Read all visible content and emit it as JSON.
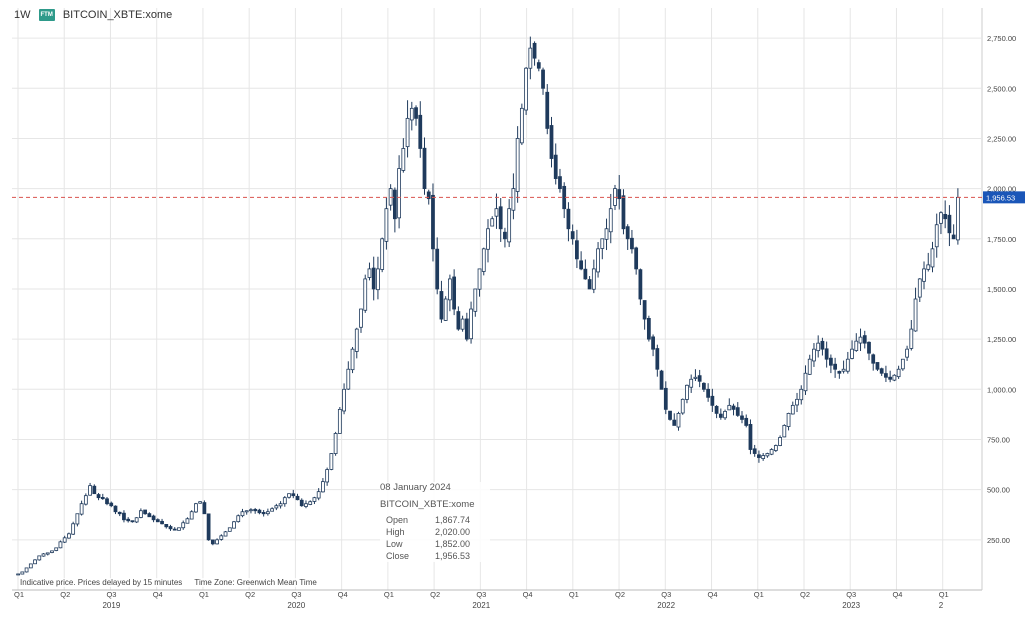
{
  "header": {
    "interval": "1W",
    "badge": "FTM",
    "symbol": "BITCOIN_XBTE:xome"
  },
  "colors": {
    "up": "#ffffff",
    "down": "#1f3a5c",
    "wick": "#1f3a5c",
    "last_price_line": "#d9534f",
    "last_price_label_bg": "#1a56b8",
    "grid": "#e6e6e6"
  },
  "tooltip": {
    "date": "08 January 2024",
    "symbol": "BITCOIN_XBTE:xome",
    "open_label": "Open",
    "open_value": "1,867.74",
    "high_label": "High",
    "high_value": "2,020.00",
    "low_label": "Low",
    "low_value": "1,852.00",
    "close_label": "Close",
    "close_value": "1,956.53"
  },
  "footer_note": {
    "delay": "Indicative price. Prices delayed by 15 minutes",
    "timezone": "Time Zone: Greenwich Mean Time"
  },
  "chart_data": {
    "type": "candlestick",
    "interval": "1W",
    "ylim": [
      0,
      2900
    ],
    "yticks": [
      "250.00",
      "500.00",
      "750.00",
      "1,000.00",
      "1,250.00",
      "1,500.00",
      "1,750.00",
      "2,000.00",
      "2,250.00",
      "2,500.00",
      "2,750.00"
    ],
    "last_price": "1,956.53",
    "quarter_ticks": [
      "Q1",
      "Q2",
      "Q3",
      "Q4",
      "Q1",
      "Q2",
      "Q3",
      "Q4",
      "Q1",
      "Q2",
      "Q3",
      "Q4",
      "Q1",
      "Q2",
      "Q3",
      "Q4",
      "Q1",
      "Q2",
      "Q3",
      "Q4",
      "Q1"
    ],
    "year_labels": [
      "2019",
      "2020",
      "2021",
      "2022",
      "2023",
      "2"
    ],
    "close": [
      80,
      90,
      110,
      130,
      150,
      170,
      180,
      185,
      195,
      210,
      240,
      260,
      280,
      330,
      380,
      430,
      470,
      520,
      480,
      460,
      455,
      430,
      420,
      390,
      380,
      350,
      345,
      340,
      360,
      395,
      380,
      365,
      350,
      340,
      330,
      315,
      305,
      300,
      310,
      335,
      355,
      390,
      430,
      440,
      380,
      250,
      230,
      250,
      270,
      290,
      310,
      340,
      370,
      390,
      395,
      400,
      395,
      385,
      380,
      390,
      405,
      420,
      430,
      460,
      480,
      470,
      450,
      420,
      430,
      440,
      460,
      490,
      540,
      600,
      680,
      780,
      900,
      1000,
      1100,
      1200,
      1300,
      1400,
      1550,
      1600,
      1500,
      1600,
      1750,
      1900,
      2000,
      1850,
      2100,
      2200,
      2350,
      2400,
      2350,
      2200,
      2000,
      1950,
      1700,
      1500,
      1350,
      1450,
      1550,
      1400,
      1300,
      1350,
      1250,
      1400,
      1500,
      1600,
      1700,
      1800,
      1850,
      1900,
      1800,
      1750,
      1900,
      2000,
      2250,
      2400,
      2600,
      2700,
      2650,
      2600,
      2500,
      2300,
      2150,
      2050,
      2000,
      1900,
      1800,
      1750,
      1650,
      1600,
      1550,
      1500,
      1600,
      1700,
      1750,
      1800,
      1900,
      2000,
      1950,
      1800,
      1750,
      1700,
      1600,
      1450,
      1350,
      1250,
      1200,
      1100,
      1000,
      900,
      850,
      820,
      880,
      950,
      1020,
      1050,
      1060,
      1040,
      1000,
      960,
      920,
      880,
      860,
      890,
      920,
      900,
      870,
      850,
      820,
      700,
      680,
      660,
      670,
      680,
      700,
      720,
      760,
      820,
      880,
      920,
      950,
      1000,
      1080,
      1150,
      1200,
      1230,
      1200,
      1150,
      1120,
      1100,
      1080,
      1100,
      1150,
      1200,
      1240,
      1260,
      1230,
      1180,
      1130,
      1100,
      1080,
      1060,
      1050,
      1070,
      1100,
      1150,
      1200,
      1300,
      1450,
      1550,
      1600,
      1620,
      1700,
      1820,
      1880,
      1850,
      1780,
      1750,
      1956.53
    ]
  }
}
